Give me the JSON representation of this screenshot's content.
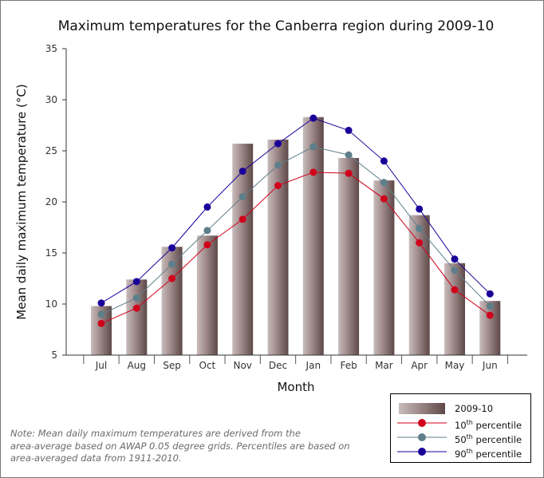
{
  "chart_data": {
    "type": "bar",
    "title": "Maximum temperatures for the Canberra region during 2009-10",
    "xlabel": "Month",
    "ylabel": "Mean daily maximum temperature (°C)",
    "ylim": [
      5,
      35
    ],
    "yticks": [
      "5",
      "10",
      "15",
      "20",
      "25",
      "30",
      "35"
    ],
    "grid": false,
    "legend_position": "bottom-right",
    "categories": [
      "Jul",
      "Aug",
      "Sep",
      "Oct",
      "Nov",
      "Dec",
      "Jan",
      "Feb",
      "Mar",
      "Apr",
      "May",
      "Jun"
    ],
    "series": [
      {
        "name": "2009-10",
        "type": "bar",
        "color": "#8a7373",
        "values": [
          9.8,
          12.4,
          15.6,
          16.7,
          25.7,
          26.1,
          28.3,
          24.3,
          22.1,
          18.7,
          14.0,
          10.3
        ]
      },
      {
        "name": "10th percentile",
        "type": "line",
        "color": "#d0021b",
        "values": [
          8.1,
          9.6,
          12.5,
          15.8,
          18.3,
          21.6,
          22.9,
          22.8,
          20.3,
          16.0,
          11.4,
          8.9
        ]
      },
      {
        "name": "50th percentile",
        "type": "line",
        "color": "#5e7f8a",
        "values": [
          9.0,
          10.6,
          13.9,
          17.2,
          20.5,
          23.6,
          25.4,
          24.6,
          21.9,
          17.4,
          13.3,
          9.8
        ]
      },
      {
        "name": "90th percentile",
        "type": "line",
        "color": "#1a0099",
        "values": [
          10.1,
          12.2,
          15.5,
          19.5,
          23.0,
          25.7,
          28.2,
          27.0,
          24.0,
          19.3,
          14.4,
          11.0
        ]
      }
    ]
  },
  "legend": {
    "bar_label": "2009-10",
    "p10": {
      "num": "10",
      "suffix": "th",
      "rest": " percentile"
    },
    "p50": {
      "num": "50",
      "suffix": "th",
      "rest": " percentile"
    },
    "p90": {
      "num": "90",
      "suffix": "th",
      "rest": " percentile"
    }
  },
  "note": {
    "line1": "Note: Mean daily maximum temperatures are derived from the",
    "line2": "area-average based on AWAP 0.05 degree grids. Percentiles are based on",
    "line3": "area-averaged data from 1911-2010."
  }
}
